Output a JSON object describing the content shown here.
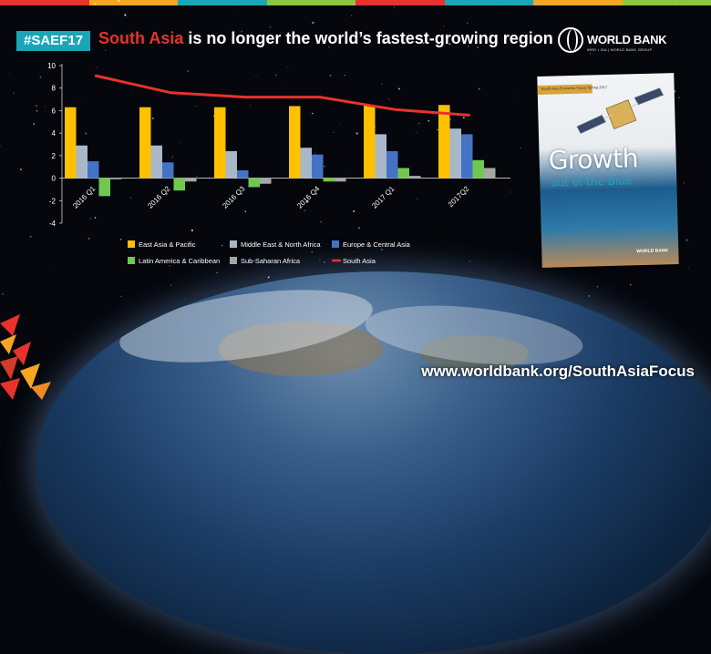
{
  "header": {
    "hashtag": "#SAEF17",
    "headline_highlight": "South Asia",
    "headline_rest": " is no longer the world’s fastest-growing region"
  },
  "logo": {
    "name": "WORLD BANK",
    "sub": "IBRD • IDA | WORLD BANK GROUP"
  },
  "cover": {
    "series": "South Asia Economic Focus Spring 2017",
    "title_line1": "Growth",
    "title_line2": "out of the Blue",
    "publisher": "WORLD BANK"
  },
  "footer": {
    "url": "www.worldbank.org/SouthAsiaFocus"
  },
  "colors": {
    "topbar": [
      "#e8322b",
      "#f5a623",
      "#1aa6b7",
      "#8cc63f",
      "#e8322b",
      "#1aa6b7",
      "#f5a623",
      "#8cc63f"
    ]
  },
  "chart_data": {
    "type": "bar",
    "title": "",
    "xlabel": "",
    "ylabel": "",
    "ylim": [
      -4,
      10
    ],
    "yticks": [
      -4,
      -2,
      0,
      2,
      4,
      6,
      8,
      10
    ],
    "grid": false,
    "legend_position": "bottom",
    "categories": [
      "2016 Q1",
      "2016 Q2",
      "2016 Q3",
      "2016 Q4",
      "2017 Q1",
      "2017Q2"
    ],
    "series": [
      {
        "name": "East Asia & Pacific",
        "type": "bar",
        "color": "#ffc000",
        "values": [
          6.3,
          6.3,
          6.3,
          6.4,
          6.5,
          6.5
        ]
      },
      {
        "name": "Middle East & North Africa",
        "type": "bar",
        "color": "#a9b8c9",
        "values": [
          2.9,
          2.9,
          2.4,
          2.7,
          3.9,
          4.4
        ]
      },
      {
        "name": "Europe & Central Asia",
        "type": "bar",
        "color": "#4472c4",
        "values": [
          1.5,
          1.4,
          0.7,
          2.1,
          2.4,
          3.9
        ]
      },
      {
        "name": "Latin America & Caribbean",
        "type": "bar",
        "color": "#70c850",
        "values": [
          -1.6,
          -1.1,
          -0.8,
          -0.3,
          0.9,
          1.6
        ]
      },
      {
        "name": "Sub-Saharan Africa",
        "type": "bar",
        "color": "#a6a6a6",
        "values": [
          -0.1,
          -0.3,
          -0.5,
          -0.3,
          0.2,
          0.9
        ]
      },
      {
        "name": "South Asia",
        "type": "line",
        "color": "#e8322b",
        "values": [
          9.1,
          7.6,
          7.2,
          7.2,
          6.1,
          5.6
        ]
      }
    ]
  }
}
